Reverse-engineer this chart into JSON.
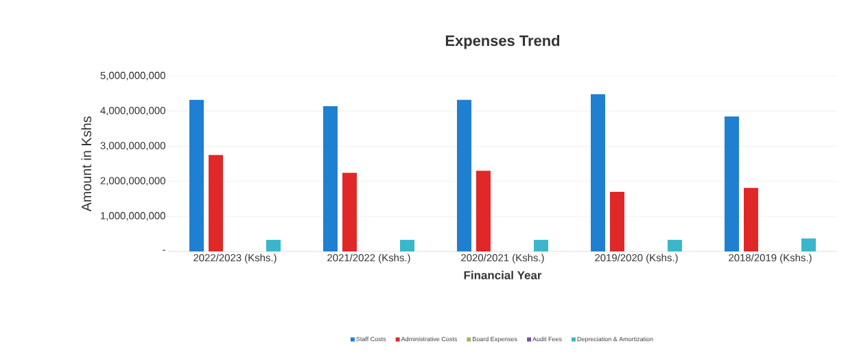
{
  "chart_data": {
    "type": "bar",
    "title": "Expenses Trend",
    "xlabel": "Financial Year",
    "ylabel": "Amount in Kshs",
    "categories": [
      "2022/2023 (Kshs.)",
      "2021/2022 (Kshs.)",
      "2020/2021 (Kshs.)",
      "2019/2020 (Kshs.)",
      "2018/2019 (Kshs.)"
    ],
    "series": [
      {
        "name": "Staff Costs",
        "color": "#1f7fd0",
        "values": [
          4320000000,
          4140000000,
          4320000000,
          4480000000,
          3850000000
        ]
      },
      {
        "name": "Administrative Costs",
        "color": "#e02828",
        "values": [
          2750000000,
          2240000000,
          2300000000,
          1700000000,
          1810000000
        ]
      },
      {
        "name": "Board Expenses",
        "color": "#9bbb59",
        "values": [
          0,
          0,
          0,
          0,
          0
        ]
      },
      {
        "name": "Audit Fees",
        "color": "#7b4fa0",
        "values": [
          0,
          0,
          0,
          0,
          0
        ]
      },
      {
        "name": "Depreciation & Amortization",
        "color": "#3ab6cc",
        "values": [
          330000000,
          330000000,
          330000000,
          330000000,
          370000000
        ]
      }
    ],
    "ylim": [
      0,
      5000000000
    ],
    "yticks": [
      {
        "value": 0,
        "label": "-"
      },
      {
        "value": 1000000000,
        "label": "1,000,000,000"
      },
      {
        "value": 2000000000,
        "label": "2,000,000,000"
      },
      {
        "value": 3000000000,
        "label": "3,000,000,000"
      },
      {
        "value": 4000000000,
        "label": "4,000,000,000"
      },
      {
        "value": 5000000000,
        "label": "5,000,000,000"
      }
    ],
    "grid": "y",
    "legend": "bottom"
  }
}
